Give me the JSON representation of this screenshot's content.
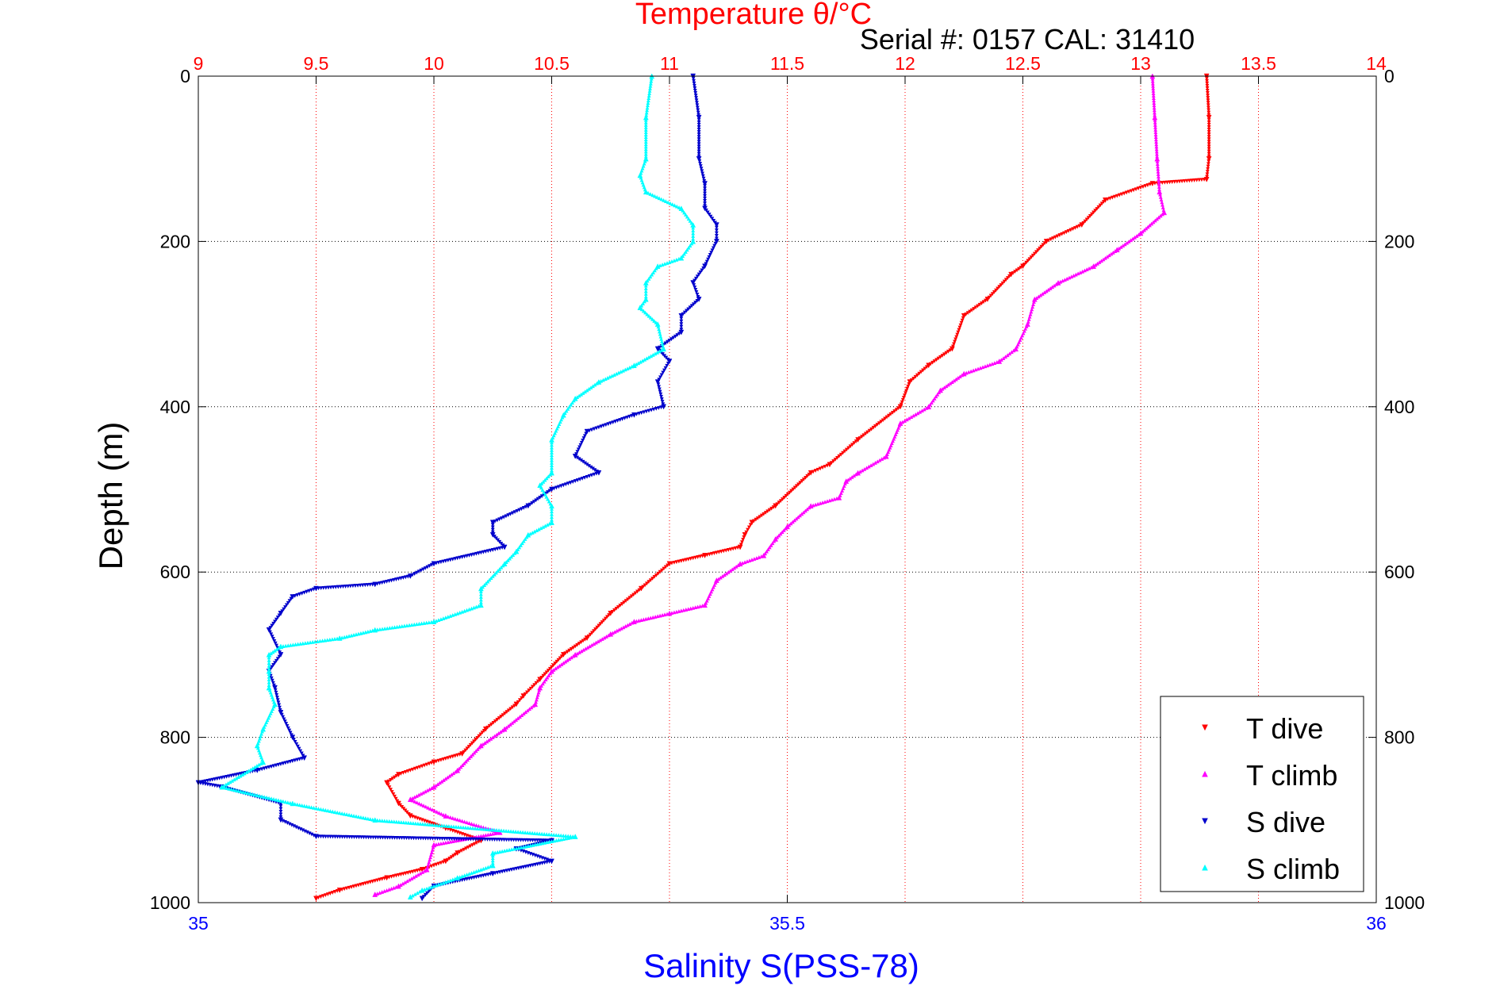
{
  "chart_data": {
    "type": "scatter",
    "title": "Temperature θ/°C",
    "subtitle": "Serial #: 0157  CAL: 31410",
    "xlabel": "Salinity S(PSS-78)",
    "ylabel": "Depth (m)",
    "ylim": [
      1000,
      0
    ],
    "y_ticks": [
      0,
      200,
      400,
      600,
      800,
      1000
    ],
    "x_top": {
      "range": [
        9,
        14
      ],
      "ticks": [
        9,
        9.5,
        10,
        10.5,
        11,
        11.5,
        12,
        12.5,
        13,
        13.5,
        14
      ],
      "tick_labels": [
        "9",
        "9.5",
        "10",
        "10.5",
        "11",
        "11.5",
        "12",
        "12.5",
        "13",
        "13.5",
        "14"
      ],
      "color": "#ff0000"
    },
    "x_bottom": {
      "range": [
        35,
        36
      ],
      "ticks": [
        35,
        35.5,
        36
      ],
      "tick_labels": [
        "35",
        "35.5",
        "36"
      ],
      "color": "#0000ff"
    },
    "grid": true,
    "legend_position": "bottom-right",
    "series": [
      {
        "name": "T dive",
        "axis": "temperature",
        "marker": "triangle-down",
        "color": "#ff0000",
        "points": [
          [
            13.28,
            0
          ],
          [
            13.29,
            50
          ],
          [
            13.29,
            100
          ],
          [
            13.28,
            125
          ],
          [
            13.05,
            130
          ],
          [
            12.85,
            150
          ],
          [
            12.75,
            180
          ],
          [
            12.6,
            200
          ],
          [
            12.5,
            230
          ],
          [
            12.45,
            240
          ],
          [
            12.35,
            270
          ],
          [
            12.25,
            290
          ],
          [
            12.2,
            330
          ],
          [
            12.1,
            350
          ],
          [
            12.02,
            370
          ],
          [
            11.98,
            400
          ],
          [
            11.8,
            440
          ],
          [
            11.68,
            470
          ],
          [
            11.6,
            480
          ],
          [
            11.45,
            520
          ],
          [
            11.35,
            540
          ],
          [
            11.32,
            555
          ],
          [
            11.3,
            570
          ],
          [
            11.15,
            580
          ],
          [
            11.0,
            590
          ],
          [
            10.88,
            620
          ],
          [
            10.75,
            650
          ],
          [
            10.65,
            680
          ],
          [
            10.55,
            700
          ],
          [
            10.45,
            730
          ],
          [
            10.38,
            750
          ],
          [
            10.35,
            760
          ],
          [
            10.22,
            790
          ],
          [
            10.12,
            820
          ],
          [
            10.0,
            830
          ],
          [
            9.85,
            845
          ],
          [
            9.8,
            855
          ],
          [
            9.85,
            880
          ],
          [
            9.9,
            895
          ],
          [
            10.05,
            910
          ],
          [
            10.2,
            925
          ],
          [
            10.1,
            940
          ],
          [
            10.05,
            950
          ],
          [
            9.95,
            960
          ],
          [
            9.8,
            970
          ],
          [
            9.6,
            985
          ],
          [
            9.5,
            995
          ]
        ]
      },
      {
        "name": "T climb",
        "axis": "temperature",
        "marker": "triangle-up",
        "color": "#ff00ff",
        "points": [
          [
            13.05,
            0
          ],
          [
            13.06,
            50
          ],
          [
            13.07,
            100
          ],
          [
            13.08,
            140
          ],
          [
            13.1,
            165
          ],
          [
            13.0,
            190
          ],
          [
            12.9,
            210
          ],
          [
            12.8,
            230
          ],
          [
            12.65,
            250
          ],
          [
            12.55,
            270
          ],
          [
            12.52,
            300
          ],
          [
            12.47,
            330
          ],
          [
            12.4,
            345
          ],
          [
            12.25,
            360
          ],
          [
            12.15,
            380
          ],
          [
            12.1,
            400
          ],
          [
            11.98,
            420
          ],
          [
            11.92,
            460
          ],
          [
            11.8,
            480
          ],
          [
            11.75,
            490
          ],
          [
            11.72,
            510
          ],
          [
            11.6,
            520
          ],
          [
            11.5,
            545
          ],
          [
            11.45,
            560
          ],
          [
            11.4,
            580
          ],
          [
            11.3,
            590
          ],
          [
            11.2,
            610
          ],
          [
            11.15,
            640
          ],
          [
            11.0,
            650
          ],
          [
            10.85,
            660
          ],
          [
            10.75,
            675
          ],
          [
            10.6,
            700
          ],
          [
            10.5,
            720
          ],
          [
            10.45,
            740
          ],
          [
            10.43,
            760
          ],
          [
            10.3,
            790
          ],
          [
            10.2,
            810
          ],
          [
            10.1,
            840
          ],
          [
            10.0,
            860
          ],
          [
            9.9,
            875
          ],
          [
            10.05,
            895
          ],
          [
            10.28,
            915
          ],
          [
            10.0,
            930
          ],
          [
            9.97,
            960
          ],
          [
            9.85,
            980
          ],
          [
            9.75,
            990
          ]
        ]
      },
      {
        "name": "S dive",
        "axis": "salinity",
        "marker": "triangle-down",
        "color": "#0000cc",
        "points": [
          [
            35.42,
            0
          ],
          [
            35.425,
            50
          ],
          [
            35.425,
            100
          ],
          [
            35.43,
            130
          ],
          [
            35.43,
            160
          ],
          [
            35.44,
            180
          ],
          [
            35.44,
            200
          ],
          [
            35.43,
            230
          ],
          [
            35.42,
            250
          ],
          [
            35.425,
            270
          ],
          [
            35.41,
            290
          ],
          [
            35.41,
            310
          ],
          [
            35.39,
            330
          ],
          [
            35.4,
            345
          ],
          [
            35.39,
            370
          ],
          [
            35.395,
            400
          ],
          [
            35.37,
            410
          ],
          [
            35.33,
            430
          ],
          [
            35.32,
            460
          ],
          [
            35.34,
            480
          ],
          [
            35.3,
            500
          ],
          [
            35.28,
            520
          ],
          [
            35.25,
            540
          ],
          [
            35.25,
            555
          ],
          [
            35.26,
            570
          ],
          [
            35.2,
            590
          ],
          [
            35.18,
            605
          ],
          [
            35.15,
            615
          ],
          [
            35.1,
            620
          ],
          [
            35.08,
            630
          ],
          [
            35.07,
            650
          ],
          [
            35.06,
            670
          ],
          [
            35.07,
            700
          ],
          [
            35.06,
            720
          ],
          [
            35.065,
            740
          ],
          [
            35.07,
            770
          ],
          [
            35.08,
            800
          ],
          [
            35.09,
            825
          ],
          [
            35.05,
            840
          ],
          [
            35.0,
            855
          ],
          [
            35.02,
            860
          ],
          [
            35.07,
            880
          ],
          [
            35.07,
            900
          ],
          [
            35.1,
            920
          ],
          [
            35.3,
            925
          ],
          [
            35.27,
            935
          ],
          [
            35.3,
            950
          ],
          [
            35.25,
            965
          ],
          [
            35.2,
            980
          ],
          [
            35.19,
            995
          ]
        ]
      },
      {
        "name": "S climb",
        "axis": "salinity",
        "marker": "triangle-up",
        "color": "#00ffff",
        "points": [
          [
            35.385,
            0
          ],
          [
            35.38,
            50
          ],
          [
            35.38,
            100
          ],
          [
            35.375,
            120
          ],
          [
            35.38,
            140
          ],
          [
            35.41,
            160
          ],
          [
            35.42,
            180
          ],
          [
            35.42,
            200
          ],
          [
            35.41,
            220
          ],
          [
            35.39,
            230
          ],
          [
            35.38,
            250
          ],
          [
            35.38,
            270
          ],
          [
            35.375,
            280
          ],
          [
            35.39,
            300
          ],
          [
            35.395,
            330
          ],
          [
            35.37,
            350
          ],
          [
            35.34,
            370
          ],
          [
            35.32,
            390
          ],
          [
            35.31,
            410
          ],
          [
            35.3,
            440
          ],
          [
            35.3,
            480
          ],
          [
            35.29,
            495
          ],
          [
            35.3,
            520
          ],
          [
            35.3,
            540
          ],
          [
            35.28,
            555
          ],
          [
            35.27,
            575
          ],
          [
            35.26,
            590
          ],
          [
            35.24,
            620
          ],
          [
            35.24,
            640
          ],
          [
            35.2,
            660
          ],
          [
            35.15,
            670
          ],
          [
            35.12,
            680
          ],
          [
            35.07,
            690
          ],
          [
            35.06,
            700
          ],
          [
            35.06,
            720
          ],
          [
            35.06,
            740
          ],
          [
            35.065,
            760
          ],
          [
            35.055,
            790
          ],
          [
            35.05,
            810
          ],
          [
            35.055,
            830
          ],
          [
            35.02,
            860
          ],
          [
            35.08,
            880
          ],
          [
            35.15,
            900
          ],
          [
            35.32,
            920
          ],
          [
            35.25,
            940
          ],
          [
            35.25,
            955
          ],
          [
            35.22,
            970
          ],
          [
            35.19,
            985
          ],
          [
            35.18,
            993
          ]
        ]
      }
    ]
  }
}
